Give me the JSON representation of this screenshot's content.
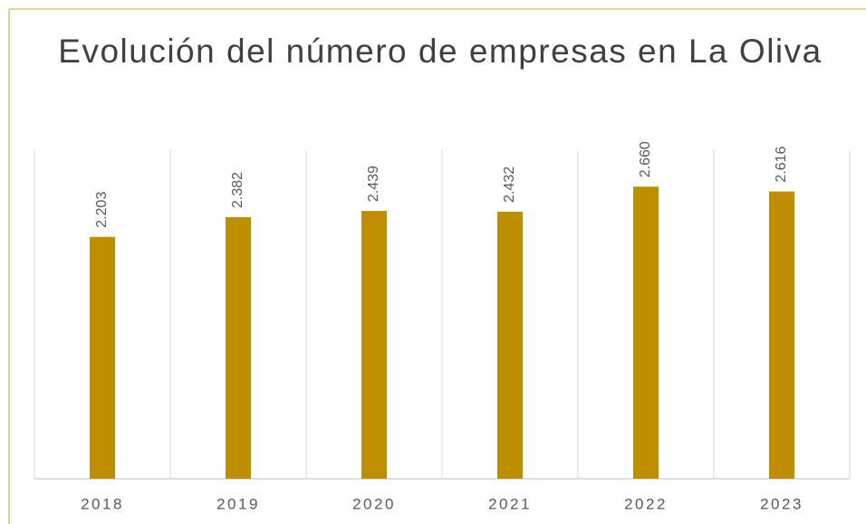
{
  "chart_data": {
    "type": "bar",
    "title": "Evolución del número de empresas en La Oliva",
    "categories": [
      "2018",
      "2019",
      "2020",
      "2021",
      "2022",
      "2023"
    ],
    "values": [
      2203,
      2382,
      2439,
      2432,
      2660,
      2616
    ],
    "value_labels": [
      "2.203",
      "2.382",
      "2.439",
      "2.432",
      "2.660",
      "2.616"
    ],
    "color": "#bf8f00",
    "ylim": [
      0,
      3000
    ],
    "grid": true
  }
}
